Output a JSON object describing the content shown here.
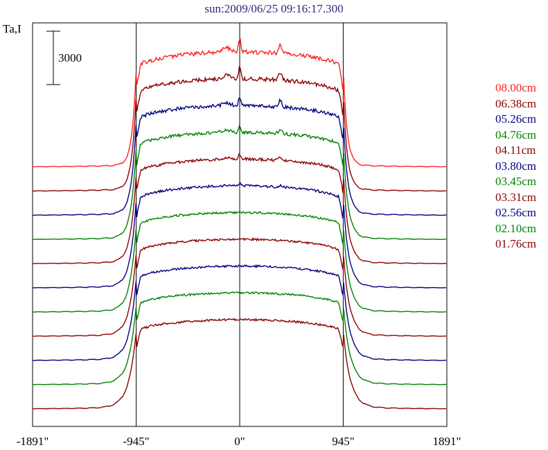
{
  "chart_data": {
    "type": "line",
    "title": "sun:2009/06/25 09:16:17.300",
    "ylabel": "Ta,I",
    "scale_bar_label": "3000",
    "xlim": [
      -1891,
      1891
    ],
    "x_ticks": [
      {
        "value": -1891,
        "label": "-1891\""
      },
      {
        "value": -945,
        "label": "-945\""
      },
      {
        "value": 0,
        "label": "0\""
      },
      {
        "value": 945,
        "label": "945\""
      },
      {
        "value": 1891,
        "label": "1891\""
      }
    ],
    "vertical_lines": [
      -945,
      0,
      945
    ],
    "grid": false,
    "legend_position": "right",
    "series": [
      {
        "name": "08.00cm",
        "color": "#ff2020"
      },
      {
        "name": "06.38cm",
        "color": "#8b0000"
      },
      {
        "name": "05.26cm",
        "color": "#000080"
      },
      {
        "name": "04.76cm",
        "color": "#008000"
      },
      {
        "name": "04.11cm",
        "color": "#8b0000"
      },
      {
        "name": "03.80cm",
        "color": "#000080"
      },
      {
        "name": "03.45cm",
        "color": "#008000"
      },
      {
        "name": "03.31cm",
        "color": "#8b0000"
      },
      {
        "name": "02.56cm",
        "color": "#000080"
      },
      {
        "name": "02.10cm",
        "color": "#008000"
      },
      {
        "name": "01.76cm",
        "color": "#8b0000"
      }
    ]
  }
}
